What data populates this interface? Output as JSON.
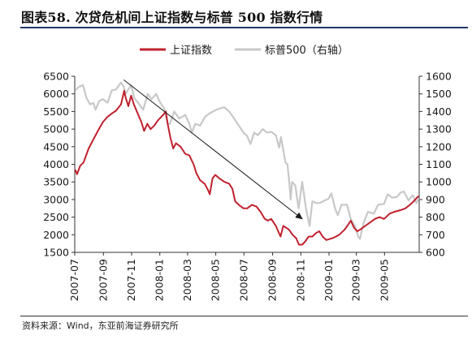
{
  "figure": {
    "title": "图表58. 次贷危机间上证指数与标普 500 指数行情",
    "source": "资料来源：Wind，东亚前海证券研究所"
  },
  "colors": {
    "shanghai": "#c0212e",
    "sp500": "#c8c8c8",
    "arrow": "#1a1a1a",
    "title_rule": "#1f3a6b"
  },
  "chart_data": {
    "type": "line",
    "legend_position": "top-center",
    "grid": false,
    "left_axis": {
      "ylim": [
        1500,
        6500
      ],
      "ticks": [
        6500,
        6000,
        5500,
        5000,
        4500,
        4000,
        3500,
        3000,
        2500,
        2000,
        1500
      ]
    },
    "right_axis": {
      "ylim": [
        600,
        1600
      ],
      "ticks": [
        1600,
        1500,
        1400,
        1300,
        1200,
        1100,
        1000,
        900,
        800,
        700,
        600
      ]
    },
    "x_axis": {
      "range": [
        "2007-07-01",
        "2009-07-15"
      ],
      "tick_labels": [
        "2007-07",
        "2007-09",
        "2007-11",
        "2008-01",
        "2008-03",
        "2008-05",
        "2008-07",
        "2008-09",
        "2008-11",
        "2009-01",
        "2009-03",
        "2009-05"
      ],
      "tick_dates": [
        "2007-07-01",
        "2007-09-01",
        "2007-11-01",
        "2008-01-01",
        "2008-03-01",
        "2008-05-01",
        "2008-07-01",
        "2008-09-01",
        "2008-11-01",
        "2009-01-01",
        "2009-03-01",
        "2009-05-01"
      ]
    },
    "series": [
      {
        "name": "上证指数",
        "axis": "left",
        "points": [
          [
            "2007-07-02",
            3850
          ],
          [
            "2007-07-06",
            3720
          ],
          [
            "2007-07-13",
            3960
          ],
          [
            "2007-07-20",
            4050
          ],
          [
            "2007-07-31",
            4450
          ],
          [
            "2007-08-10",
            4700
          ],
          [
            "2007-08-20",
            4950
          ],
          [
            "2007-08-31",
            5200
          ],
          [
            "2007-09-10",
            5350
          ],
          [
            "2007-09-20",
            5450
          ],
          [
            "2007-09-28",
            5520
          ],
          [
            "2007-10-09",
            5700
          ],
          [
            "2007-10-16",
            6090
          ],
          [
            "2007-10-19",
            5900
          ],
          [
            "2007-10-25",
            5650
          ],
          [
            "2007-10-31",
            5950
          ],
          [
            "2007-11-06",
            5700
          ],
          [
            "2007-11-14",
            5450
          ],
          [
            "2007-11-22",
            5200
          ],
          [
            "2007-11-28",
            4950
          ],
          [
            "2007-12-05",
            5150
          ],
          [
            "2007-12-12",
            5000
          ],
          [
            "2007-12-20",
            5100
          ],
          [
            "2007-12-28",
            5250
          ],
          [
            "2008-01-08",
            5400
          ],
          [
            "2008-01-14",
            5500
          ],
          [
            "2008-01-18",
            5150
          ],
          [
            "2008-01-24",
            4750
          ],
          [
            "2008-01-30",
            4450
          ],
          [
            "2008-02-05",
            4600
          ],
          [
            "2008-02-15",
            4500
          ],
          [
            "2008-02-25",
            4300
          ],
          [
            "2008-03-05",
            4250
          ],
          [
            "2008-03-14",
            4000
          ],
          [
            "2008-03-20",
            3750
          ],
          [
            "2008-03-28",
            3550
          ],
          [
            "2008-04-07",
            3450
          ],
          [
            "2008-04-15",
            3250
          ],
          [
            "2008-04-18",
            3150
          ],
          [
            "2008-04-24",
            3600
          ],
          [
            "2008-04-30",
            3700
          ],
          [
            "2008-05-09",
            3600
          ],
          [
            "2008-05-20",
            3500
          ],
          [
            "2008-05-30",
            3450
          ],
          [
            "2008-06-06",
            3300
          ],
          [
            "2008-06-12",
            2950
          ],
          [
            "2008-06-20",
            2850
          ],
          [
            "2008-06-30",
            2750
          ],
          [
            "2008-07-08",
            2750
          ],
          [
            "2008-07-18",
            2850
          ],
          [
            "2008-07-28",
            2800
          ],
          [
            "2008-08-06",
            2650
          ],
          [
            "2008-08-15",
            2450
          ],
          [
            "2008-08-22",
            2400
          ],
          [
            "2008-08-29",
            2450
          ],
          [
            "2008-09-08",
            2250
          ],
          [
            "2008-09-18",
            1950
          ],
          [
            "2008-09-24",
            2250
          ],
          [
            "2008-10-06",
            2150
          ],
          [
            "2008-10-14",
            2000
          ],
          [
            "2008-10-22",
            1900
          ],
          [
            "2008-10-28",
            1720
          ],
          [
            "2008-11-04",
            1720
          ],
          [
            "2008-11-10",
            1800
          ],
          [
            "2008-11-18",
            1950
          ],
          [
            "2008-11-26",
            1950
          ],
          [
            "2008-12-04",
            2050
          ],
          [
            "2008-12-11",
            2100
          ],
          [
            "2008-12-18",
            1950
          ],
          [
            "2008-12-26",
            1850
          ],
          [
            "2009-01-08",
            1900
          ],
          [
            "2009-01-16",
            1950
          ],
          [
            "2009-01-23",
            2000
          ],
          [
            "2009-02-04",
            2150
          ],
          [
            "2009-02-12",
            2300
          ],
          [
            "2009-02-17",
            2400
          ],
          [
            "2009-02-24",
            2200
          ],
          [
            "2009-03-03",
            2100
          ],
          [
            "2009-03-10",
            2150
          ],
          [
            "2009-03-20",
            2250
          ],
          [
            "2009-03-31",
            2350
          ],
          [
            "2009-04-10",
            2450
          ],
          [
            "2009-04-20",
            2500
          ],
          [
            "2009-04-30",
            2450
          ],
          [
            "2009-05-12",
            2600
          ],
          [
            "2009-05-22",
            2650
          ],
          [
            "2009-06-05",
            2700
          ],
          [
            "2009-06-15",
            2750
          ],
          [
            "2009-06-25",
            2850
          ],
          [
            "2009-07-03",
            2950
          ],
          [
            "2009-07-10",
            3050
          ],
          [
            "2009-07-14",
            3100
          ]
        ]
      },
      {
        "name": "标普500（右轴）",
        "axis": "right",
        "points": [
          [
            "2007-07-02",
            1520
          ],
          [
            "2007-07-10",
            1540
          ],
          [
            "2007-07-19",
            1550
          ],
          [
            "2007-07-26",
            1480
          ],
          [
            "2007-08-03",
            1440
          ],
          [
            "2007-08-10",
            1450
          ],
          [
            "2007-08-15",
            1410
          ],
          [
            "2007-08-23",
            1460
          ],
          [
            "2007-08-31",
            1470
          ],
          [
            "2007-09-10",
            1450
          ],
          [
            "2007-09-19",
            1520
          ],
          [
            "2007-09-28",
            1525
          ],
          [
            "2007-10-09",
            1565
          ],
          [
            "2007-10-15",
            1540
          ],
          [
            "2007-10-19",
            1500
          ],
          [
            "2007-10-31",
            1550
          ],
          [
            "2007-11-07",
            1475
          ],
          [
            "2007-11-15",
            1450
          ],
          [
            "2007-11-26",
            1410
          ],
          [
            "2007-12-06",
            1500
          ],
          [
            "2007-12-14",
            1470
          ],
          [
            "2007-12-24",
            1500
          ],
          [
            "2008-01-02",
            1450
          ],
          [
            "2008-01-10",
            1420
          ],
          [
            "2008-01-18",
            1330
          ],
          [
            "2008-01-23",
            1330
          ],
          [
            "2008-02-01",
            1400
          ],
          [
            "2008-02-12",
            1360
          ],
          [
            "2008-02-25",
            1380
          ],
          [
            "2008-03-05",
            1330
          ],
          [
            "2008-03-10",
            1280
          ],
          [
            "2008-03-18",
            1330
          ],
          [
            "2008-03-28",
            1320
          ],
          [
            "2008-04-08",
            1370
          ],
          [
            "2008-04-18",
            1390
          ],
          [
            "2008-05-02",
            1410
          ],
          [
            "2008-05-19",
            1425
          ],
          [
            "2008-05-30",
            1400
          ],
          [
            "2008-06-10",
            1360
          ],
          [
            "2008-06-20",
            1320
          ],
          [
            "2008-06-30",
            1280
          ],
          [
            "2008-07-08",
            1260
          ],
          [
            "2008-07-15",
            1215
          ],
          [
            "2008-07-23",
            1280
          ],
          [
            "2008-07-31",
            1265
          ],
          [
            "2008-08-11",
            1300
          ],
          [
            "2008-08-20",
            1280
          ],
          [
            "2008-08-29",
            1285
          ],
          [
            "2008-09-08",
            1265
          ],
          [
            "2008-09-15",
            1195
          ],
          [
            "2008-09-19",
            1255
          ],
          [
            "2008-09-29",
            1110
          ],
          [
            "2008-10-03",
            1100
          ],
          [
            "2008-10-07",
            1000
          ],
          [
            "2008-10-10",
            900
          ],
          [
            "2008-10-13",
            1000
          ],
          [
            "2008-10-20",
            980
          ],
          [
            "2008-10-27",
            850
          ],
          [
            "2008-11-04",
            1000
          ],
          [
            "2008-11-12",
            850
          ],
          [
            "2008-11-20",
            750
          ],
          [
            "2008-11-26",
            890
          ],
          [
            "2008-12-05",
            880
          ],
          [
            "2008-12-12",
            880
          ],
          [
            "2008-12-19",
            890
          ],
          [
            "2008-12-31",
            905
          ],
          [
            "2009-01-06",
            935
          ],
          [
            "2009-01-14",
            850
          ],
          [
            "2009-01-20",
            810
          ],
          [
            "2009-01-28",
            870
          ],
          [
            "2009-02-09",
            870
          ],
          [
            "2009-02-17",
            790
          ],
          [
            "2009-02-26",
            750
          ],
          [
            "2009-03-05",
            690
          ],
          [
            "2009-03-09",
            677
          ],
          [
            "2009-03-16",
            760
          ],
          [
            "2009-03-26",
            830
          ],
          [
            "2009-04-08",
            820
          ],
          [
            "2009-04-17",
            870
          ],
          [
            "2009-04-30",
            875
          ],
          [
            "2009-05-08",
            930
          ],
          [
            "2009-05-18",
            910
          ],
          [
            "2009-05-28",
            915
          ],
          [
            "2009-06-05",
            940
          ],
          [
            "2009-06-12",
            945
          ],
          [
            "2009-06-22",
            895
          ],
          [
            "2009-07-01",
            925
          ],
          [
            "2009-07-09",
            880
          ],
          [
            "2009-07-14",
            905
          ]
        ]
      }
    ],
    "annotations": [
      {
        "type": "arrow",
        "from": [
          "2007-10-15",
          6400
        ],
        "to": [
          "2008-11-04",
          2450
        ],
        "axis": "left"
      }
    ]
  }
}
